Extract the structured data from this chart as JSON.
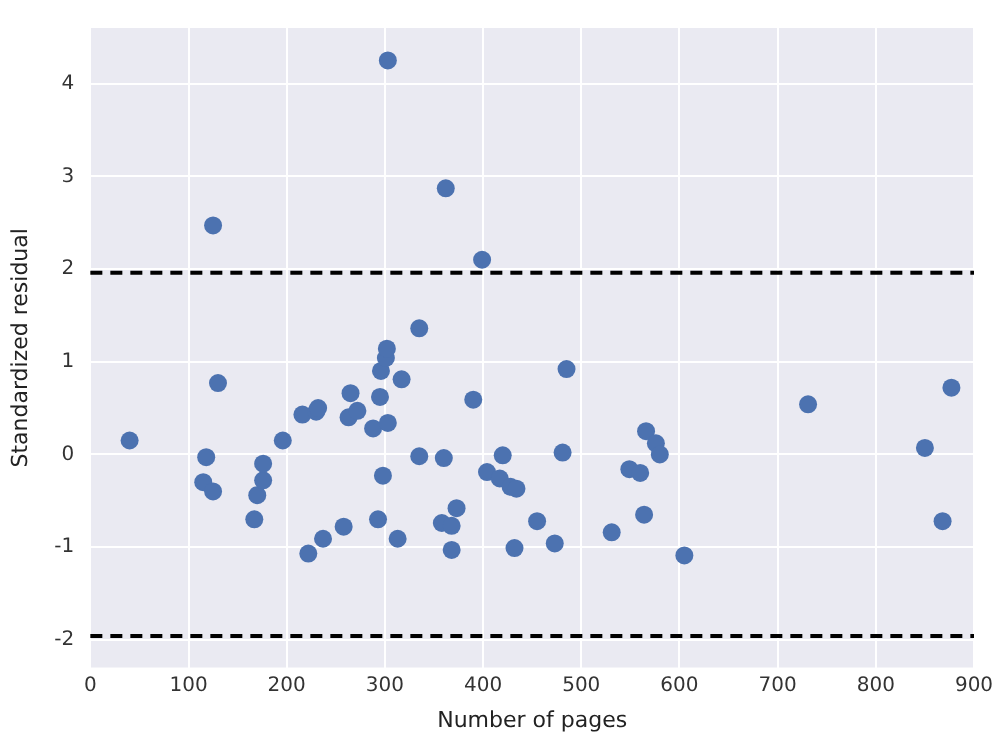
{
  "chart_data": {
    "type": "scatter",
    "xlabel": "Number of pages",
    "ylabel": "Standardized residual",
    "xlim": [
      0,
      900
    ],
    "xticks": [
      0,
      100,
      200,
      300,
      400,
      500,
      600,
      700,
      800,
      900
    ],
    "ylim": [
      -2.3,
      4.6
    ],
    "yticks": [
      -2,
      -1,
      0,
      1,
      2,
      3,
      4
    ],
    "grid": true,
    "marker": "circle",
    "series": [
      {
        "color": "#4c72b0",
        "x": [
          40,
          115,
          118,
          125,
          125,
          130,
          167,
          170,
          176,
          176,
          196,
          216,
          222,
          230,
          232,
          237,
          258,
          263,
          265,
          272,
          288,
          293,
          295,
          296,
          298,
          301,
          302,
          303,
          303,
          313,
          317,
          335,
          335,
          358,
          360,
          362,
          368,
          368,
          373,
          390,
          399,
          404,
          417,
          420,
          428,
          432,
          434,
          455,
          473,
          481,
          485,
          531,
          549,
          560,
          564,
          566,
          576,
          580,
          605,
          731,
          850,
          868,
          877
        ],
        "values": [
          0.15,
          -0.3,
          -0.03,
          -0.4,
          2.47,
          0.77,
          -0.7,
          -0.44,
          -0.28,
          -0.1,
          0.15,
          0.43,
          -1.07,
          0.46,
          0.5,
          -0.91,
          -0.78,
          0.4,
          0.66,
          0.47,
          0.28,
          -0.7,
          0.62,
          0.9,
          -0.23,
          1.04,
          1.14,
          0.34,
          4.25,
          -0.91,
          0.81,
          -0.02,
          1.36,
          -0.74,
          -0.04,
          2.87,
          -0.77,
          -1.03,
          -0.58,
          0.59,
          2.1,
          -0.19,
          -0.26,
          -0.01,
          -0.35,
          -1.01,
          -0.37,
          -0.72,
          -0.96,
          0.02,
          0.92,
          -0.84,
          -0.16,
          -0.2,
          -0.65,
          0.25,
          0.12,
          0.0,
          -1.09,
          0.54,
          0.07,
          -0.72,
          0.72
        ]
      }
    ],
    "ref_lines": [
      {
        "axis": "y",
        "value": 1.96,
        "color": "#000000",
        "line_style": "dashed"
      },
      {
        "axis": "y",
        "value": -1.96,
        "color": "#000000",
        "line_style": "dashed"
      }
    ]
  }
}
